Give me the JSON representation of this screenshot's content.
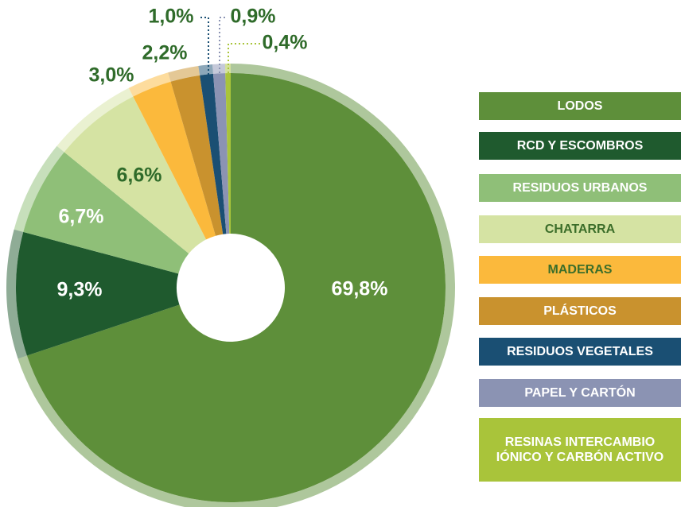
{
  "chart_data": {
    "type": "pie",
    "categories": [
      "LODOS",
      "RCD Y ESCOMBROS",
      "RESIDUOS URBANOS",
      "CHATARRA",
      "MADERAS",
      "PLÁSTICOS",
      "RESIDUOS VEGETALES",
      "PAPEL Y CARTÓN",
      "RESINAS INTERCAMBIO IÓNICO Y CARBÓN ACTIVO"
    ],
    "values": [
      69.8,
      9.3,
      6.7,
      6.6,
      3.0,
      2.2,
      1.0,
      0.9,
      0.4
    ],
    "value_labels": [
      "69,8%",
      "9,3%",
      "6,7%",
      "6,6%",
      "3,0%",
      "2,2%",
      "1,0%",
      "0,9%",
      "0,4%"
    ],
    "colors": [
      "#5e8f3a",
      "#1f5a2e",
      "#8fbf78",
      "#d5e3a3",
      "#fbb93c",
      "#c9922e",
      "#1a4f73",
      "#8b93b3",
      "#a9c43a"
    ]
  }
}
